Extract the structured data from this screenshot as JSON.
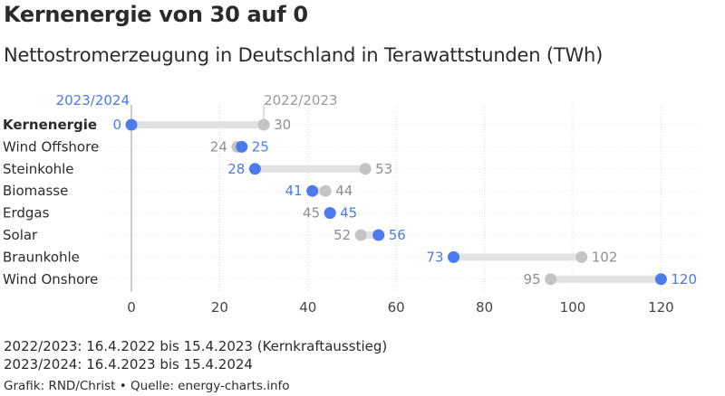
{
  "title": "Kernenergie von 30 auf 0",
  "subtitle": "Nettostromerzeugung in Deutschland in Terawattstunden (TWh)",
  "notes": [
    "2022/2023: 16.4.2022 bis 15.4.2023 (Kernkraftausstieg)",
    "2023/2024: 16.4.2023 bis 15.4.2024"
  ],
  "source": "Grafik: RND/Christ • Quelle: energy-charts.info",
  "colors": {
    "current": "#4b7bec",
    "previous": "#c4c4c4",
    "bar": "#e2e2e2",
    "grid": "#d9d9d9",
    "axis": "#9a9a9a"
  },
  "chart_data": {
    "type": "dumbbell",
    "xlim": [
      0,
      130
    ],
    "xticks": [
      0,
      20,
      40,
      60,
      80,
      100,
      120
    ],
    "grid": true,
    "categories": [
      "Kernenergie",
      "Wind Offshore",
      "Steinkohle",
      "Biomasse",
      "Erdgas",
      "Solar",
      "Braunkohle",
      "Wind Onshore"
    ],
    "highlight_category": "Kernenergie",
    "series": [
      {
        "name": "2022/2023",
        "values": [
          30,
          24,
          53,
          44,
          45,
          52,
          102,
          95
        ]
      },
      {
        "name": "2023/2024",
        "values": [
          0,
          25,
          28,
          41,
          45,
          56,
          73,
          120
        ]
      }
    ]
  }
}
